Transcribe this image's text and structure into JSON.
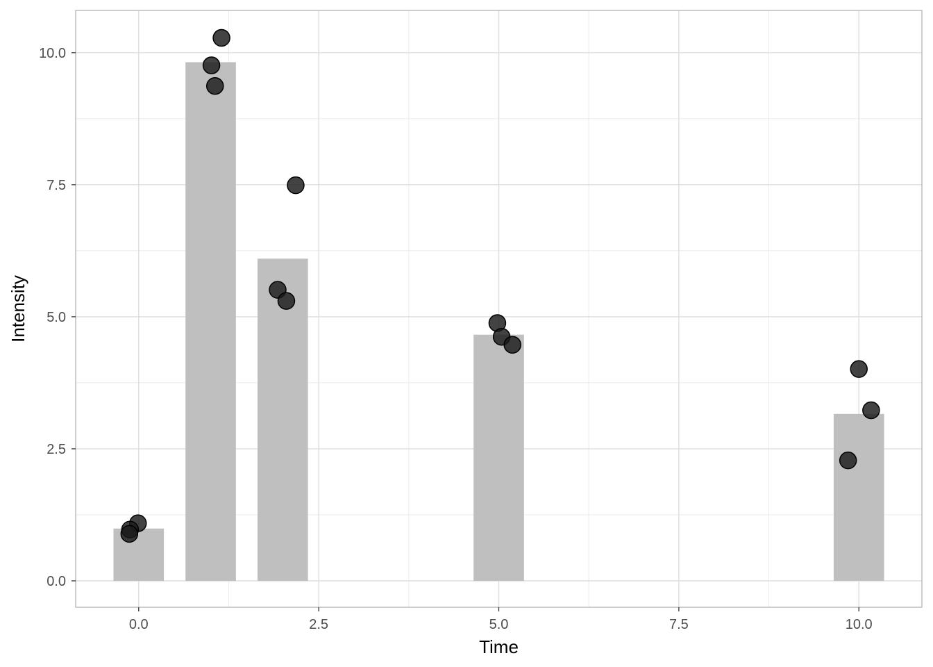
{
  "chart_data": {
    "type": "bar",
    "xlabel": "Time",
    "ylabel": "Intensity",
    "xlim": [
      -0.875,
      10.875
    ],
    "ylim": [
      -0.5,
      10.8
    ],
    "x_ticks": [
      0.0,
      2.5,
      5.0,
      7.5,
      10.0
    ],
    "x_tick_labels": [
      "0.0",
      "2.5",
      "5.0",
      "7.5",
      "10.0"
    ],
    "y_ticks": [
      0.0,
      2.5,
      5.0,
      7.5,
      10.0
    ],
    "y_tick_labels": [
      "0.0",
      "2.5",
      "5.0",
      "7.5",
      "10.0"
    ],
    "grid": true,
    "bar_width": 0.7,
    "bar_color": "#bfbfbf",
    "point_color": "#1a1a1a",
    "bars": [
      {
        "x": 0,
        "value": 0.99
      },
      {
        "x": 1,
        "value": 9.82
      },
      {
        "x": 2,
        "value": 6.1
      },
      {
        "x": 5,
        "value": 4.66
      },
      {
        "x": 10,
        "value": 3.16
      }
    ],
    "points": [
      {
        "x": -0.01,
        "y": 1.09
      },
      {
        "x": -0.12,
        "y": 0.97
      },
      {
        "x": -0.13,
        "y": 0.89
      },
      {
        "x": 1.01,
        "y": 9.76
      },
      {
        "x": 1.06,
        "y": 9.37
      },
      {
        "x": 1.15,
        "y": 10.28
      },
      {
        "x": 1.93,
        "y": 5.51
      },
      {
        "x": 2.05,
        "y": 5.3
      },
      {
        "x": 2.18,
        "y": 7.49
      },
      {
        "x": 4.98,
        "y": 4.88
      },
      {
        "x": 5.04,
        "y": 4.62
      },
      {
        "x": 5.19,
        "y": 4.47
      },
      {
        "x": 9.85,
        "y": 2.28
      },
      {
        "x": 10.0,
        "y": 4.01
      },
      {
        "x": 10.17,
        "y": 3.23
      }
    ]
  }
}
